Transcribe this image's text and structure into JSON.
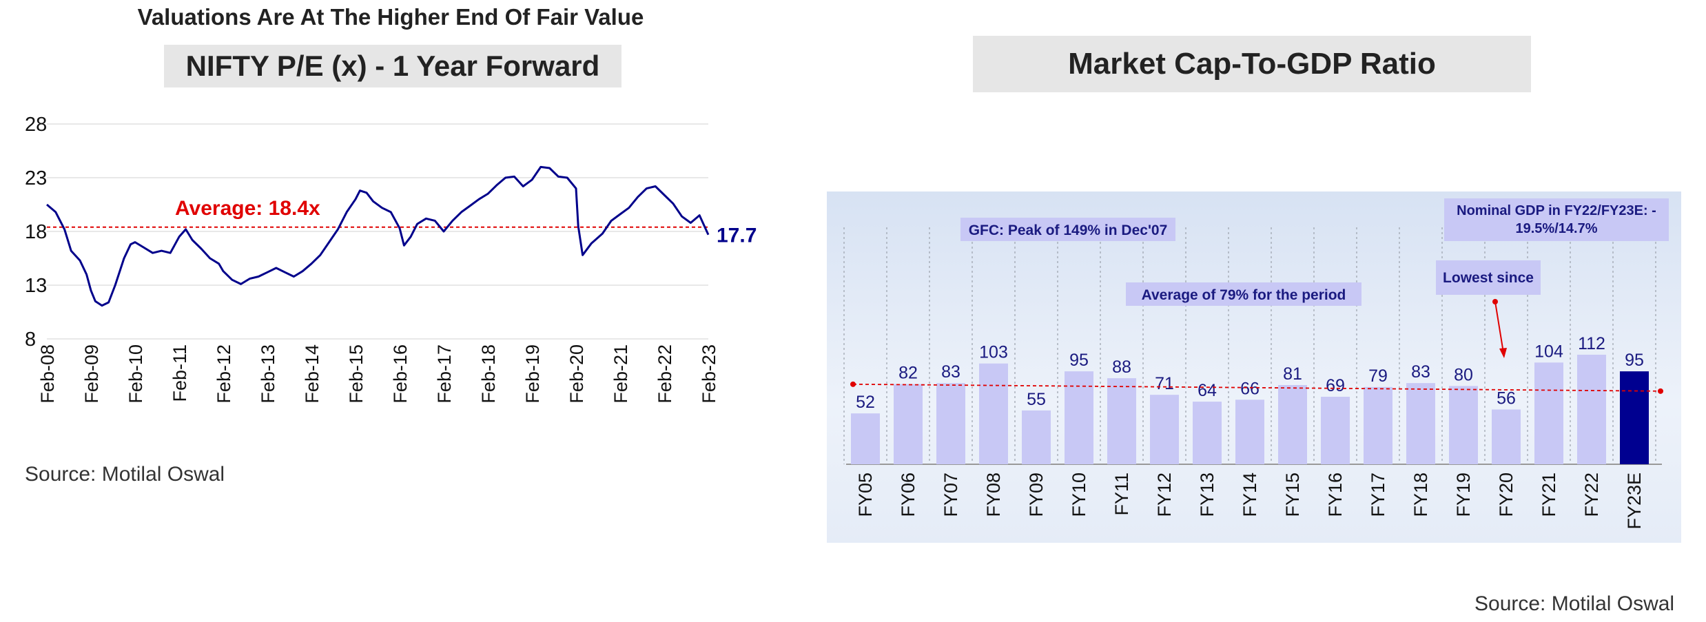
{
  "left_chart": {
    "headline": "Valuations Are At The Higher End Of  Fair Value",
    "title": "NIFTY P/E (x) - 1 Year Forward",
    "source": "Source: Motilal Oswal"
  },
  "right_chart": {
    "title": "Market Cap-To-GDP Ratio",
    "source": "Source: Motilal Oswal"
  },
  "chart_data": [
    {
      "type": "line",
      "title": "NIFTY P/E (x) - 1 Year Forward",
      "ylim": [
        8,
        28
      ],
      "yticks": [
        8,
        13,
        18,
        23,
        28
      ],
      "xlabels": [
        "Feb-08",
        "Feb-09",
        "Feb-10",
        "Feb-11",
        "Feb-12",
        "Feb-13",
        "Feb-14",
        "Feb-15",
        "Feb-16",
        "Feb-17",
        "Feb-18",
        "Feb-19",
        "Feb-20",
        "Feb-21",
        "Feb-22",
        "Feb-23"
      ],
      "grid": true,
      "average": 18.4,
      "average_label": "Average: 18.4x",
      "last_value_label": "17.7",
      "colors": {
        "line": "#00008b",
        "average": "#e00000",
        "last_value": "#00008b"
      },
      "series": [
        {
          "values": [
            [
              0.0,
              20.5
            ],
            [
              0.2,
              19.8
            ],
            [
              0.4,
              18.2
            ],
            [
              0.55,
              16.2
            ],
            [
              0.75,
              15.3
            ],
            [
              0.9,
              14.0
            ],
            [
              1.0,
              12.5
            ],
            [
              1.1,
              11.5
            ],
            [
              1.25,
              11.1
            ],
            [
              1.4,
              11.4
            ],
            [
              1.55,
              13.0
            ],
            [
              1.75,
              15.5
            ],
            [
              1.9,
              16.8
            ],
            [
              2.0,
              17.0
            ],
            [
              2.2,
              16.5
            ],
            [
              2.4,
              16.0
            ],
            [
              2.6,
              16.2
            ],
            [
              2.8,
              16.0
            ],
            [
              3.0,
              17.5
            ],
            [
              3.15,
              18.2
            ],
            [
              3.3,
              17.2
            ],
            [
              3.5,
              16.4
            ],
            [
              3.7,
              15.5
            ],
            [
              3.9,
              15.0
            ],
            [
              4.0,
              14.3
            ],
            [
              4.2,
              13.5
            ],
            [
              4.4,
              13.1
            ],
            [
              4.6,
              13.6
            ],
            [
              4.8,
              13.8
            ],
            [
              5.0,
              14.2
            ],
            [
              5.2,
              14.6
            ],
            [
              5.4,
              14.2
            ],
            [
              5.6,
              13.8
            ],
            [
              5.8,
              14.3
            ],
            [
              6.0,
              15.0
            ],
            [
              6.2,
              15.8
            ],
            [
              6.4,
              17.0
            ],
            [
              6.6,
              18.2
            ],
            [
              6.8,
              19.8
            ],
            [
              7.0,
              21.0
            ],
            [
              7.1,
              21.8
            ],
            [
              7.25,
              21.6
            ],
            [
              7.4,
              20.8
            ],
            [
              7.6,
              20.2
            ],
            [
              7.8,
              19.8
            ],
            [
              8.0,
              18.3
            ],
            [
              8.1,
              16.7
            ],
            [
              8.25,
              17.5
            ],
            [
              8.4,
              18.7
            ],
            [
              8.6,
              19.2
            ],
            [
              8.8,
              19.0
            ],
            [
              9.0,
              18.0
            ],
            [
              9.2,
              19.0
            ],
            [
              9.4,
              19.8
            ],
            [
              9.6,
              20.4
            ],
            [
              9.8,
              21.0
            ],
            [
              10.0,
              21.5
            ],
            [
              10.2,
              22.3
            ],
            [
              10.4,
              23.0
            ],
            [
              10.6,
              23.1
            ],
            [
              10.8,
              22.2
            ],
            [
              11.0,
              22.8
            ],
            [
              11.2,
              24.0
            ],
            [
              11.4,
              23.9
            ],
            [
              11.6,
              23.1
            ],
            [
              11.8,
              23.0
            ],
            [
              12.0,
              22.0
            ],
            [
              12.05,
              18.5
            ],
            [
              12.15,
              15.8
            ],
            [
              12.35,
              16.9
            ],
            [
              12.6,
              17.8
            ],
            [
              12.8,
              19.0
            ],
            [
              13.0,
              19.6
            ],
            [
              13.2,
              20.2
            ],
            [
              13.4,
              21.2
            ],
            [
              13.6,
              22.0
            ],
            [
              13.8,
              22.2
            ],
            [
              14.0,
              21.4
            ],
            [
              14.2,
              20.6
            ],
            [
              14.4,
              19.4
            ],
            [
              14.6,
              18.8
            ],
            [
              14.8,
              19.5
            ],
            [
              15.0,
              17.7
            ]
          ]
        }
      ]
    },
    {
      "type": "bar",
      "title": "Market Cap-To-GDP Ratio",
      "categories": [
        "FY05",
        "FY06",
        "FY07",
        "FY08",
        "FY09",
        "FY10",
        "FY11",
        "FY12",
        "FY13",
        "FY14",
        "FY15",
        "FY16",
        "FY17",
        "FY18",
        "FY19",
        "FY20",
        "FY21",
        "FY22",
        "FY23E"
      ],
      "values": [
        52,
        82,
        83,
        103,
        55,
        95,
        88,
        71,
        64,
        66,
        81,
        69,
        79,
        83,
        80,
        56,
        104,
        112,
        95
      ],
      "average": 79,
      "highlight_category": "FY23E",
      "colors": {
        "bar": "#c8c8f5",
        "highlight": "#000090",
        "label": "#1a1a80",
        "average": "#e00000",
        "annotation_bg": "#c8c8f5"
      },
      "annotations": [
        "GFC: Peak of 149% in Dec'07",
        "Average of 79% for the period",
        "Lowest since",
        "Nominal GDP in FY22/FY23E: -",
        "19.5%/14.7%"
      ]
    }
  ]
}
